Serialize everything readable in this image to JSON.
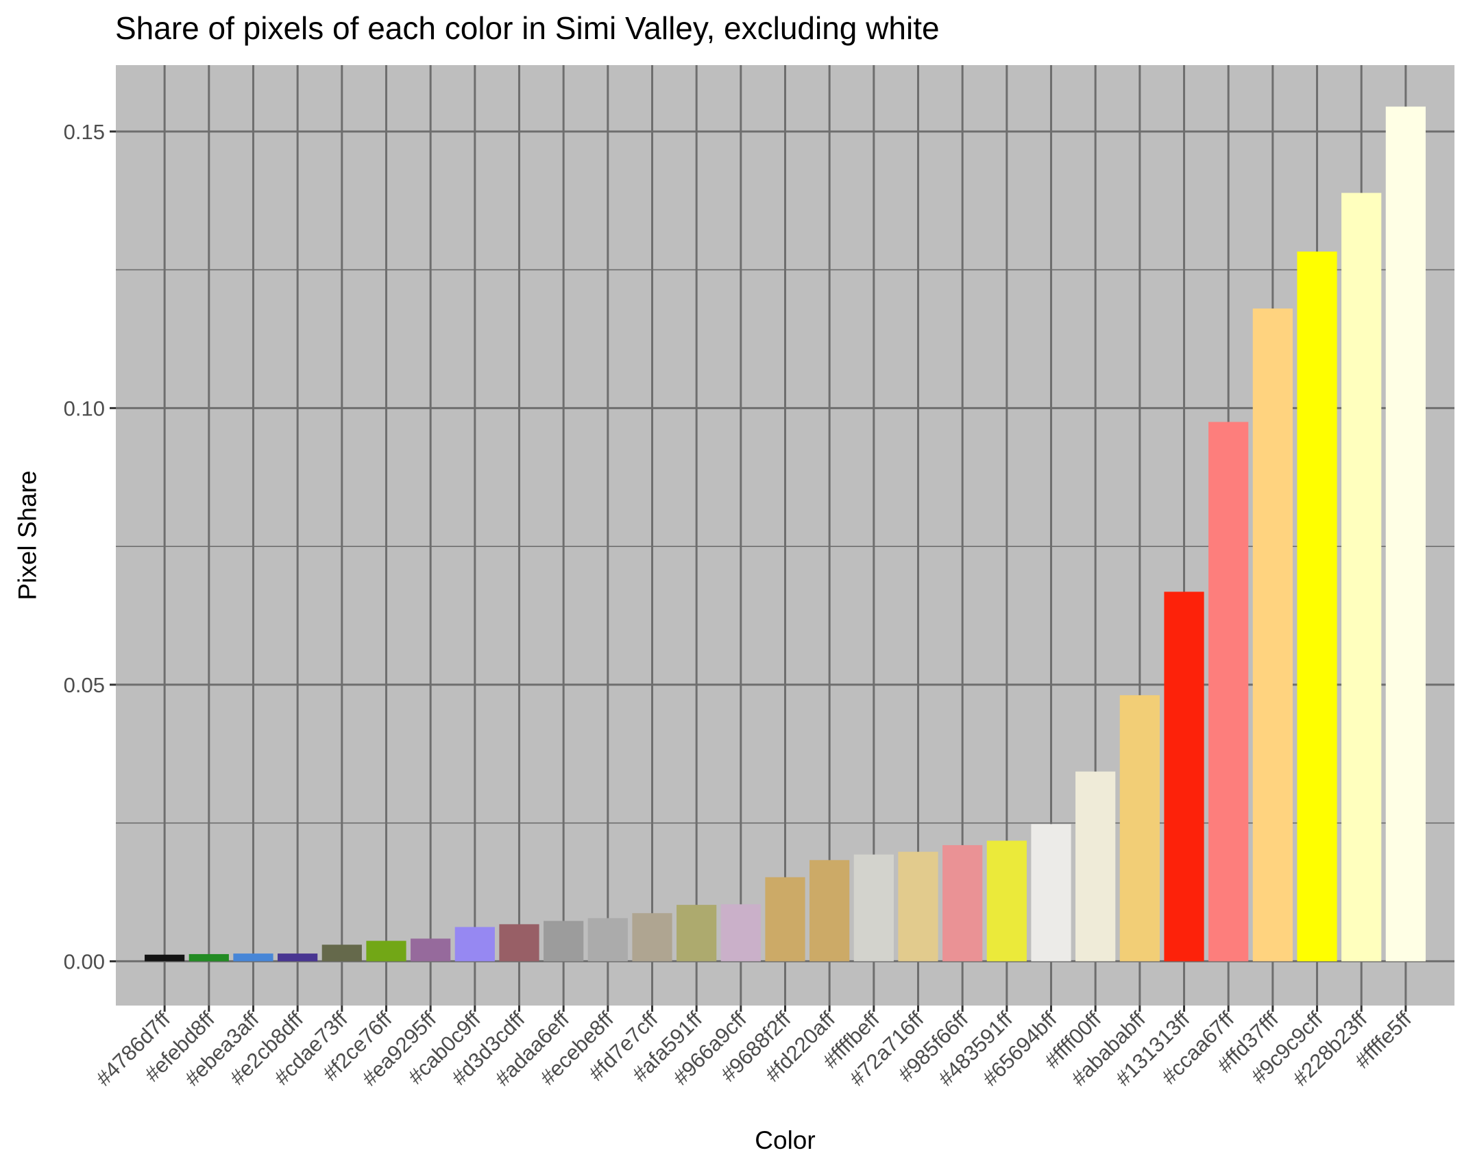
{
  "chart_data": {
    "type": "bar",
    "title": "Share of pixels of each color in Simi Valley, excluding white",
    "xlabel": "Color",
    "ylabel": "Pixel Share",
    "ylim": [
      -0.008,
      0.162
    ],
    "yticks": [
      0.0,
      0.05,
      0.1,
      0.15
    ],
    "ytick_labels": [
      "0.00",
      "0.05",
      "0.10",
      "0.15"
    ],
    "panel_background": "#bebebe",
    "grid_color": "#6e6e6e",
    "categories": [
      "#4786d7ff",
      "#efebd8ff",
      "#ebea3aff",
      "#e2cb8dff",
      "#cdae73ff",
      "#f2ce76ff",
      "#ea9295ff",
      "#cab0c9ff",
      "#d3d3cdff",
      "#adaa6eff",
      "#ecebe8ff",
      "#fd7e7cff",
      "#afa591ff",
      "#966a9cff",
      "#9688f2ff",
      "#fd220aff",
      "#ffffbeff",
      "#72a716ff",
      "#985f66ff",
      "#483591ff",
      "#65694bff",
      "#ffff00ff",
      "#abababff",
      "#131313ff",
      "#ccaa67ff",
      "#ffd37fff",
      "#9c9c9cff",
      "#228b23ff",
      "#ffffe5ff"
    ],
    "values": [
      0.0012,
      0.0013,
      0.0014,
      0.0014,
      0.003,
      0.0037,
      0.0041,
      0.0062,
      0.0067,
      0.0073,
      0.0078,
      0.0087,
      0.0102,
      0.0103,
      0.0152,
      0.0183,
      0.0193,
      0.0198,
      0.021,
      0.0218,
      0.0248,
      0.0343,
      0.0481,
      0.0668,
      0.0975,
      0.118,
      0.1283,
      0.1389,
      0.1545
    ],
    "bar_colors": [
      "#131313",
      "#228b23",
      "#4786d7",
      "#483591",
      "#65694b",
      "#72a716",
      "#966a9c",
      "#9688f2",
      "#985f66",
      "#9c9c9c",
      "#ababab",
      "#afa591",
      "#adaa6e",
      "#cab0c9",
      "#ccaa67",
      "#ccaa67",
      "#d3d3cd",
      "#e2cb8d",
      "#ea9295",
      "#ebea3a",
      "#ecebe8",
      "#efebd8",
      "#f2ce76",
      "#fd220a",
      "#fd7e7c",
      "#ffd37f",
      "#ffff00",
      "#ffffbe",
      "#ffffe5"
    ]
  }
}
